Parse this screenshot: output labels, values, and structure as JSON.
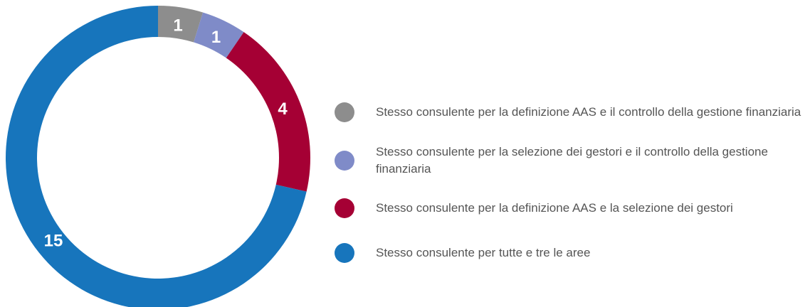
{
  "chart_data": {
    "type": "pie",
    "donut": true,
    "categories": [
      "Stesso consulente per la definizione AAS e il controllo della gestione finanziaria",
      "Stesso consulente per la selezione dei gestori e il controllo della gestione finanziaria",
      "Stesso consulente per la definizione AAS e la selezione dei gestori",
      "Stesso consulente per tutte e tre le aree"
    ],
    "values": [
      1,
      1,
      4,
      15
    ],
    "colors": [
      "#8d8d8d",
      "#7f8bc8",
      "#a50034",
      "#1775bc"
    ]
  }
}
